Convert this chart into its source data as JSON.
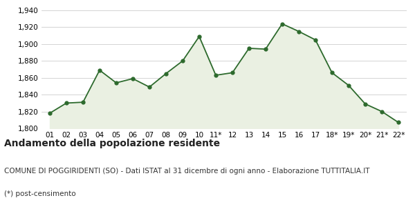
{
  "x_labels": [
    "01",
    "02",
    "03",
    "04",
    "05",
    "06",
    "07",
    "08",
    "09",
    "10",
    "11*",
    "12",
    "13",
    "14",
    "15",
    "16",
    "17",
    "18*",
    "19*",
    "20*",
    "21*",
    "22*"
  ],
  "y_values": [
    1818,
    1830,
    1831,
    1869,
    1854,
    1859,
    1849,
    1865,
    1880,
    1909,
    1863,
    1866,
    1895,
    1894,
    1924,
    1915,
    1905,
    1866,
    1851,
    1829,
    1820,
    1807
  ],
  "line_color": "#2d6a2d",
  "fill_color": "#eaf0e2",
  "marker_color": "#2d6a2d",
  "background_color": "#ffffff",
  "plot_bg_color": "#ffffff",
  "grid_color": "#cccccc",
  "ylim": [
    1800,
    1940
  ],
  "yticks": [
    1800,
    1820,
    1840,
    1860,
    1880,
    1900,
    1920,
    1940
  ],
  "title": "Andamento della popolazione residente",
  "subtitle": "COMUNE DI POGGIRIDENTI (SO) - Dati ISTAT al 31 dicembre di ogni anno - Elaborazione TUTTITALIA.IT",
  "footnote": "(*) post-censimento",
  "title_fontsize": 10,
  "subtitle_fontsize": 7.5,
  "footnote_fontsize": 7.5,
  "tick_fontsize": 7.5
}
